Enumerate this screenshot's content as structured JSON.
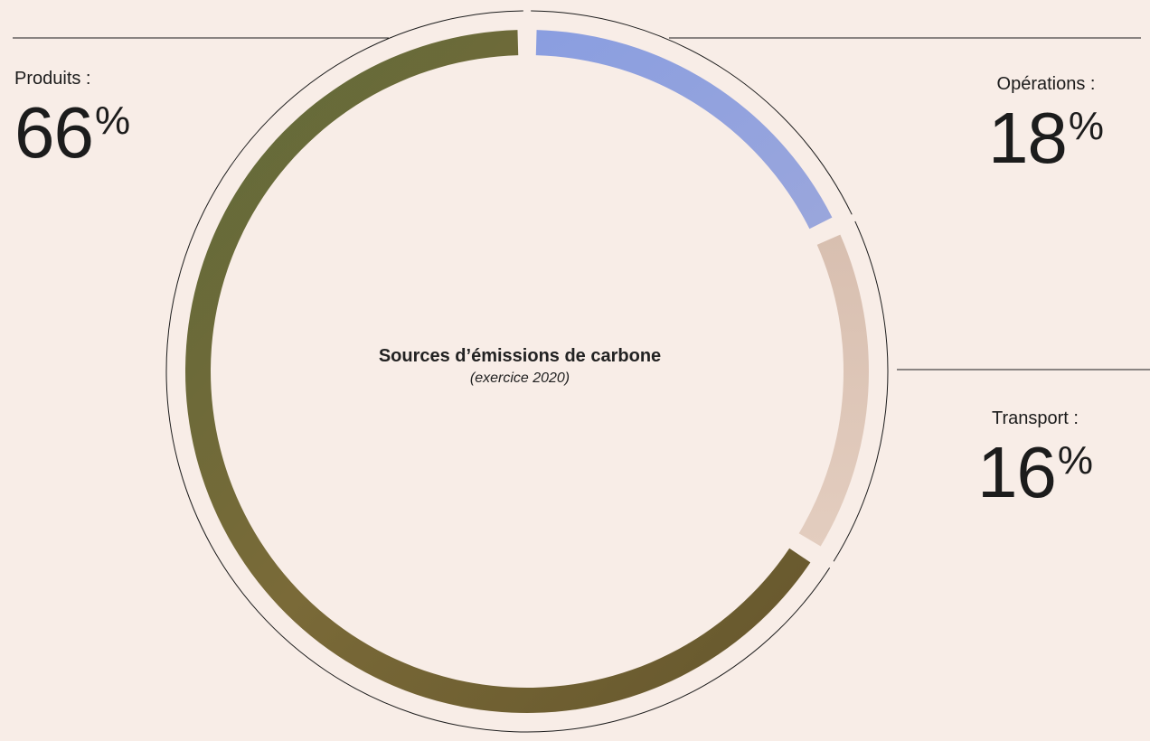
{
  "chart_data": {
    "type": "pie",
    "variant": "donut",
    "title": "Sources d’émissions de carbone",
    "subtitle": "(exercice 2020)",
    "slices": [
      {
        "label": "Produits :",
        "value": 66,
        "unit": "%",
        "color": "#6e6530"
      },
      {
        "label": "Opérations :",
        "value": 18,
        "unit": "%",
        "color": "#8f9fdc"
      },
      {
        "label": "Transport :",
        "value": 16,
        "unit": "%",
        "color": "#d9c1b3"
      }
    ],
    "legend": "labels-outside",
    "background_color": "#f8ede7",
    "line_color": "#1c1c1c"
  }
}
